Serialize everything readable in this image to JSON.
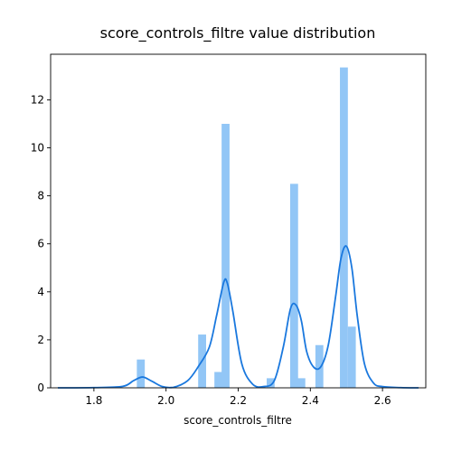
{
  "chart_data": {
    "type": "bar",
    "title": "score_controls_filtre value distribution",
    "xlabel": "score_controls_filtre",
    "ylabel": "",
    "xlim": [
      1.68,
      2.72
    ],
    "ylim": [
      0,
      13.9
    ],
    "xticks": [
      "1.8",
      "2.0",
      "2.2",
      "2.4",
      "2.6"
    ],
    "yticks": [
      "0",
      "2",
      "4",
      "6",
      "8",
      "10",
      "12"
    ],
    "grid": false,
    "colors": {
      "bars": "#92c6f6",
      "kde": "#1a78de"
    },
    "histogram": {
      "bin_width": 0.022,
      "bins": [
        {
          "x": 1.93,
          "height": 1.18
        },
        {
          "x": 2.1,
          "height": 2.22
        },
        {
          "x": 2.145,
          "height": 0.66
        },
        {
          "x": 2.165,
          "height": 11.0
        },
        {
          "x": 2.29,
          "height": 0.4
        },
        {
          "x": 2.355,
          "height": 8.5
        },
        {
          "x": 2.375,
          "height": 0.4
        },
        {
          "x": 2.425,
          "height": 1.78
        },
        {
          "x": 2.493,
          "height": 13.35
        },
        {
          "x": 2.515,
          "height": 2.55
        }
      ]
    },
    "kde": {
      "x": [
        1.7,
        1.8,
        1.88,
        1.91,
        1.935,
        1.96,
        1.99,
        2.02,
        2.06,
        2.09,
        2.12,
        2.14,
        2.16,
        2.17,
        2.185,
        2.21,
        2.24,
        2.27,
        2.3,
        2.325,
        2.345,
        2.36,
        2.375,
        2.39,
        2.41,
        2.43,
        2.45,
        2.47,
        2.485,
        2.5,
        2.515,
        2.53,
        2.55,
        2.575,
        2.6,
        2.65,
        2.7
      ],
      "y": [
        0,
        0.01,
        0.06,
        0.3,
        0.45,
        0.28,
        0.05,
        0.02,
        0.3,
        0.9,
        1.7,
        3.0,
        4.4,
        4.35,
        3.2,
        1.0,
        0.15,
        0.05,
        0.3,
        1.7,
        3.3,
        3.45,
        2.8,
        1.5,
        0.85,
        0.9,
        1.8,
        3.8,
        5.4,
        5.9,
        5.0,
        3.0,
        1.0,
        0.2,
        0.05,
        0.01,
        0
      ]
    }
  }
}
